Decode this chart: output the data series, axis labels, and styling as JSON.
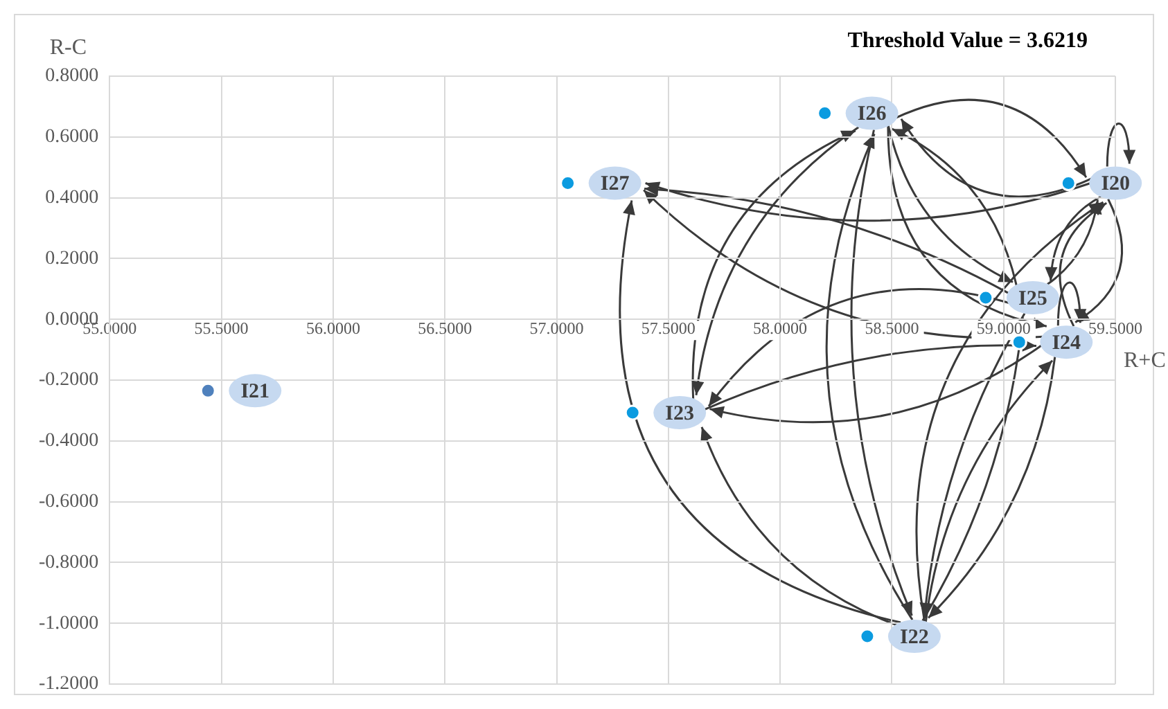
{
  "chart_data": {
    "type": "scatter",
    "xlabel": "R+C",
    "ylabel": "R-C",
    "annotations": [
      "Threshold Value = 3.6219"
    ],
    "xlim": [
      55,
      59.5
    ],
    "xticks": [
      {
        "value": 55,
        "label": "55.0000"
      },
      {
        "value": 55.5,
        "label": "55.5000"
      },
      {
        "value": 56,
        "label": "56.0000"
      },
      {
        "value": 56.5,
        "label": "56.5000"
      },
      {
        "value": 57,
        "label": "57.0000"
      },
      {
        "value": 57.5,
        "label": "57.5000"
      },
      {
        "value": 58,
        "label": "58.0000"
      },
      {
        "value": 58.5,
        "label": "58.5000"
      },
      {
        "value": 59,
        "label": "59.0000"
      },
      {
        "value": 59.5,
        "label": "59.5000"
      }
    ],
    "ylim": [
      -1.2,
      0.8
    ],
    "yticks": [
      {
        "value": -1.2,
        "label": "-1.2000"
      },
      {
        "value": -1,
        "label": "-1.0000"
      },
      {
        "value": -0.8,
        "label": "-0.8000"
      },
      {
        "value": -0.6,
        "label": "-0.6000"
      },
      {
        "value": -0.4,
        "label": "-0.4000"
      },
      {
        "value": -0.2,
        "label": "-0.2000"
      },
      {
        "value": 0,
        "label": "0.0000"
      },
      {
        "value": 0.2,
        "label": "0.2000"
      },
      {
        "value": 0.4,
        "label": "0.4000"
      },
      {
        "value": 0.6,
        "label": "0.6000"
      },
      {
        "value": 0.8,
        "label": "0.8000"
      }
    ],
    "grid": true,
    "legend": false,
    "marker": "circle",
    "series": [
      {
        "name": "I21",
        "color": "#4f81bd",
        "x": [
          55.44
        ],
        "values": [
          -0.235
        ]
      },
      {
        "name": "I27",
        "color": "#0b9be0",
        "x": [
          57.05
        ],
        "values": [
          0.448
        ]
      },
      {
        "name": "I26",
        "color": "#0b9be0",
        "x": [
          58.2
        ],
        "values": [
          0.678
        ]
      },
      {
        "name": "I20",
        "color": "#0b9be0",
        "x": [
          59.29
        ],
        "values": [
          0.448
        ]
      },
      {
        "name": "I25",
        "color": "#0b9be0",
        "x": [
          58.92
        ],
        "values": [
          0.071
        ]
      },
      {
        "name": "I24",
        "color": "#0b9be0",
        "x": [
          59.07
        ],
        "values": [
          -0.075
        ]
      },
      {
        "name": "I23",
        "color": "#0b9be0",
        "x": [
          57.34
        ],
        "values": [
          -0.307
        ]
      },
      {
        "name": "I22",
        "color": "#0b9be0",
        "x": [
          58.39
        ],
        "values": [
          -1.043
        ]
      }
    ]
  }
}
